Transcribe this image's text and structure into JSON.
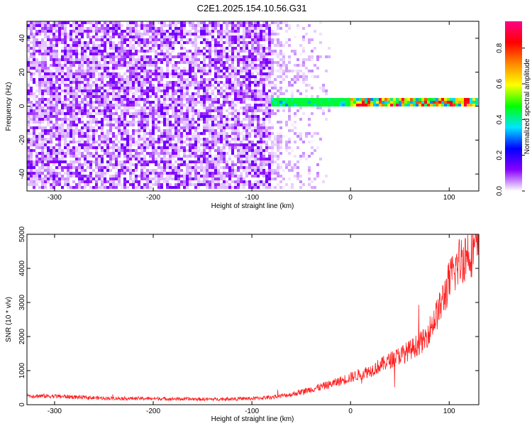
{
  "title": "C2E1.2025.154.10.56.G31",
  "chart_data": [
    {
      "type": "heatmap",
      "xlabel": "Height of straight line (km)",
      "ylabel": "Frequency (Hz)",
      "xlim": [
        -328,
        130
      ],
      "ylim": [
        -50,
        50
      ],
      "xticks": [
        -300,
        -200,
        -100,
        0,
        100
      ],
      "yticks": [
        -40,
        -20,
        0,
        20,
        40
      ],
      "colorbar": {
        "label": "Normalized spectral amplitude",
        "range": [
          0.0,
          0.95
        ],
        "ticks": [
          0.0,
          0.2,
          0.4,
          0.6,
          0.8
        ],
        "tick_labels": [
          "0.0",
          "0.2",
          "0.4",
          "0.6",
          "0.8"
        ],
        "colormap": [
          "#ffffff",
          "#8800ff",
          "#0000ff",
          "#00e5ff",
          "#00ff00",
          "#ffff00",
          "#ff8800",
          "#ff0000",
          "#ff0088"
        ]
      },
      "regions": [
        {
          "x": [
            -328,
            -80
          ],
          "y": [
            -50,
            50
          ],
          "amplitude": [
            0.02,
            0.15
          ]
        },
        {
          "x": [
            -80,
            -20
          ],
          "y": [
            -50,
            50
          ],
          "amplitude": [
            0.0,
            0.06
          ]
        },
        {
          "x": [
            -80,
            130
          ],
          "y": [
            -1,
            4
          ],
          "amplitude": [
            0.3,
            0.9
          ]
        }
      ]
    },
    {
      "type": "line",
      "xlabel": "Height of straight line (km)",
      "ylabel": "SNR (10 * v/v)",
      "xlim": [
        -328,
        130
      ],
      "ylim": [
        0,
        5000
      ],
      "xticks": [
        -300,
        -200,
        -100,
        0,
        100
      ],
      "yticks": [
        0,
        1000,
        2000,
        3000,
        4000,
        5000
      ],
      "color": "#ff2020",
      "x": [
        -328,
        -300,
        -250,
        -200,
        -150,
        -100,
        -80,
        -60,
        -40,
        -20,
        0,
        20,
        40,
        60,
        75,
        80,
        90,
        100,
        110,
        120,
        130
      ],
      "y": [
        260,
        250,
        190,
        180,
        160,
        180,
        220,
        300,
        450,
        600,
        800,
        1000,
        1300,
        1600,
        1900,
        2200,
        2800,
        3600,
        4200,
        4500,
        4700
      ]
    }
  ]
}
